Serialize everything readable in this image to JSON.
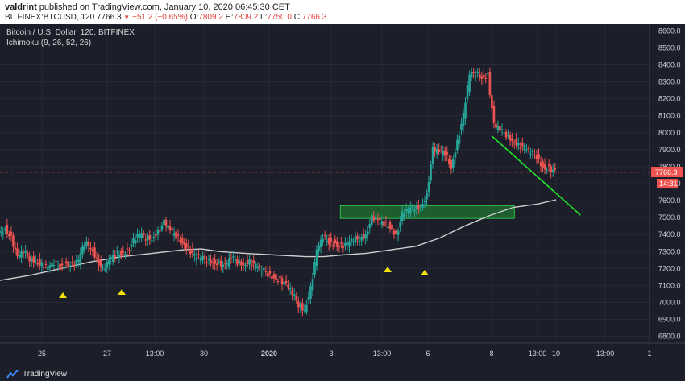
{
  "header": {
    "author": "valdrint",
    "published": "published on TradingView.com, January 10, 2020 06:45:30 CET",
    "symbol_line": "BITFINEX:BTCUSD, 120",
    "last": "7766.3",
    "change": "−51.2 (−0.65%)",
    "o_label": "O:",
    "o": "7809.2",
    "h_label": "H:",
    "h": "7809.2",
    "l_label": "L:",
    "l": "7750.0",
    "c_label": "C:",
    "c": "7766.3"
  },
  "legend": {
    "title": "Bitcoin / U.S. Dollar, 120, BITFINEX",
    "indicator": "Ichimoku (9, 26, 52, 26)"
  },
  "footer": {
    "brand": "TradingView"
  },
  "colors": {
    "background": "#1c1f2a",
    "up": "#26a69a",
    "down": "#ef5350",
    "baseline": "#cfcfcf",
    "trendline": "#22e52a",
    "support_zone": "#1f8f32",
    "price_label": "#ef5350",
    "markers": "#f5e20a"
  },
  "chart_data": {
    "type": "candlestick",
    "title": "Bitcoin / U.S. Dollar, 120, BITFINEX",
    "y_axis": {
      "ticks": [
        "8600.0",
        "8500.0",
        "8400.0",
        "8300.0",
        "8200.0",
        "8100.0",
        "8000.0",
        "7900.0",
        "7800.0",
        "7700.0",
        "7600.0",
        "7500.0",
        "7400.0",
        "7300.0",
        "7200.0",
        "7100.0",
        "7000.0",
        "6900.0",
        "6800.0"
      ],
      "range": [
        6760,
        8640
      ]
    },
    "x_axis": {
      "ticks": [
        "25",
        "27",
        "13:00",
        "30",
        "2020",
        "3",
        "13:00",
        "6",
        "8",
        "13:00",
        "10",
        "13:00",
        "1"
      ]
    },
    "last_price": {
      "value": 7766.3,
      "label": "7766.3",
      "countdown": "14:31"
    },
    "price_path": [
      [
        0,
        7400
      ],
      [
        2,
        7440
      ],
      [
        4,
        7380
      ],
      [
        6,
        7260
      ],
      [
        8,
        7300
      ],
      [
        10,
        7260
      ],
      [
        12,
        7250
      ],
      [
        14,
        7220
      ],
      [
        16,
        7200
      ],
      [
        18,
        7230
      ],
      [
        20,
        7210
      ],
      [
        22,
        7230
      ],
      [
        24,
        7220
      ],
      [
        26,
        7240
      ],
      [
        28,
        7350
      ],
      [
        30,
        7330
      ],
      [
        32,
        7260
      ],
      [
        34,
        7190
      ],
      [
        36,
        7240
      ],
      [
        38,
        7280
      ],
      [
        40,
        7290
      ],
      [
        42,
        7310
      ],
      [
        44,
        7360
      ],
      [
        46,
        7400
      ],
      [
        48,
        7380
      ],
      [
        50,
        7380
      ],
      [
        52,
        7420
      ],
      [
        54,
        7470
      ],
      [
        56,
        7420
      ],
      [
        58,
        7390
      ],
      [
        60,
        7360
      ],
      [
        62,
        7320
      ],
      [
        64,
        7270
      ],
      [
        66,
        7260
      ],
      [
        68,
        7250
      ],
      [
        70,
        7240
      ],
      [
        72,
        7230
      ],
      [
        74,
        7210
      ],
      [
        76,
        7260
      ],
      [
        78,
        7240
      ],
      [
        80,
        7230
      ],
      [
        82,
        7240
      ],
      [
        84,
        7210
      ],
      [
        86,
        7190
      ],
      [
        88,
        7170
      ],
      [
        90,
        7150
      ],
      [
        92,
        7130
      ],
      [
        94,
        7100
      ],
      [
        96,
        7050
      ],
      [
        98,
        6990
      ],
      [
        100,
        6960
      ],
      [
        102,
        7080
      ],
      [
        104,
        7300
      ],
      [
        106,
        7380
      ],
      [
        108,
        7360
      ],
      [
        110,
        7350
      ],
      [
        112,
        7330
      ],
      [
        114,
        7340
      ],
      [
        116,
        7370
      ],
      [
        118,
        7380
      ],
      [
        120,
        7400
      ],
      [
        122,
        7500
      ],
      [
        124,
        7480
      ],
      [
        126,
        7460
      ],
      [
        128,
        7450
      ],
      [
        130,
        7400
      ],
      [
        132,
        7520
      ],
      [
        134,
        7540
      ],
      [
        136,
        7560
      ],
      [
        138,
        7560
      ],
      [
        140,
        7640
      ],
      [
        142,
        7900
      ],
      [
        144,
        7880
      ],
      [
        146,
        7880
      ],
      [
        148,
        7800
      ],
      [
        150,
        7950
      ],
      [
        152,
        8100
      ],
      [
        154,
        8340
      ],
      [
        156,
        8350
      ],
      [
        158,
        8330
      ],
      [
        160,
        8340
      ],
      [
        162,
        8040
      ],
      [
        164,
        8010
      ],
      [
        166,
        7990
      ],
      [
        168,
        7960
      ],
      [
        170,
        7930
      ],
      [
        172,
        7910
      ],
      [
        174,
        7880
      ],
      [
        176,
        7860
      ],
      [
        178,
        7800
      ],
      [
        180,
        7790
      ],
      [
        182,
        7766
      ]
    ],
    "baseline_path": [
      [
        0,
        7130
      ],
      [
        10,
        7160
      ],
      [
        20,
        7200
      ],
      [
        30,
        7240
      ],
      [
        40,
        7270
      ],
      [
        50,
        7290
      ],
      [
        60,
        7310
      ],
      [
        66,
        7315
      ],
      [
        72,
        7300
      ],
      [
        80,
        7290
      ],
      [
        90,
        7280
      ],
      [
        100,
        7270
      ],
      [
        106,
        7270
      ],
      [
        112,
        7280
      ],
      [
        120,
        7290
      ],
      [
        128,
        7310
      ],
      [
        136,
        7330
      ],
      [
        144,
        7380
      ],
      [
        152,
        7450
      ],
      [
        160,
        7510
      ],
      [
        168,
        7560
      ],
      [
        176,
        7580
      ],
      [
        182,
        7605
      ]
    ],
    "trendline": {
      "from": [
        161,
        7980
      ],
      "to": [
        190,
        7515
      ]
    },
    "support_zone": {
      "x0": 131,
      "x1": 198,
      "y_low": 7495,
      "y_high": 7570
    },
    "markers": [
      [
        20,
        7150
      ],
      [
        38,
        7180
      ],
      [
        123,
        7230
      ],
      [
        134,
        7210
      ]
    ]
  }
}
